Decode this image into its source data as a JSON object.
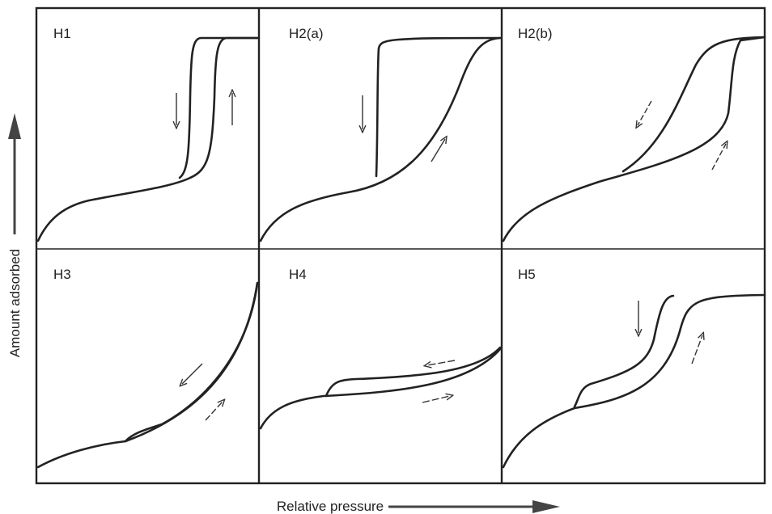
{
  "panels": [
    {
      "label": "H1"
    },
    {
      "label": "H2(a)"
    },
    {
      "label": "H2(b)"
    },
    {
      "label": "H3"
    },
    {
      "label": "H4"
    },
    {
      "label": "H5"
    }
  ],
  "axes": {
    "y_label": "Amount adsorbed",
    "x_label": "Relative pressure"
  }
}
